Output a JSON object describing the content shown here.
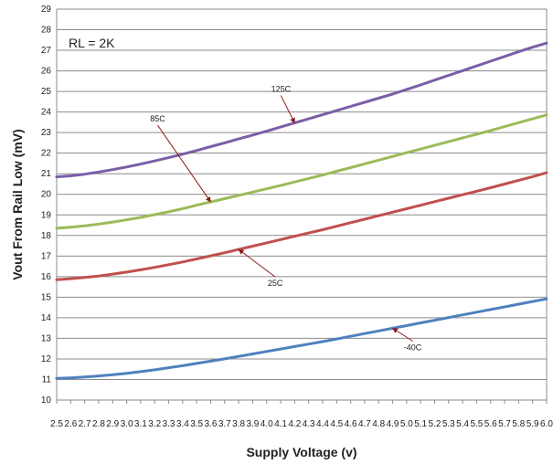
{
  "chart_data": {
    "type": "line",
    "title": "",
    "xlabel": "Supply Voltage (v)",
    "ylabel": "Vout From Rail Low (mV)",
    "note": "RL = 2K",
    "xlim": [
      2.5,
      6.0
    ],
    "ylim": [
      10,
      29
    ],
    "grid": true,
    "x": [
      2.5,
      2.6,
      2.7,
      2.8,
      2.9,
      3.0,
      3.1,
      3.2,
      3.3,
      3.4,
      3.5,
      3.6,
      3.7,
      3.8,
      3.9,
      4.0,
      4.1,
      4.2,
      4.3,
      4.4,
      4.5,
      4.6,
      4.7,
      4.8,
      4.9,
      5.0,
      5.1,
      5.2,
      5.3,
      5.4,
      5.5,
      5.6,
      5.7,
      5.8,
      5.9,
      6.0
    ],
    "x_tick_labels": [
      "2.5",
      "2.6",
      "2.7",
      "2.8",
      "2.9",
      "3.0",
      "3.1",
      "3.2",
      "3.3",
      "3.4",
      "3.5",
      "3.6",
      "3.7",
      "3.8",
      "3.9",
      "4.0",
      "4.1",
      "4.2",
      "4.3",
      "4.4",
      "4.5",
      "4.6",
      "4.7",
      "4.8",
      "4.9",
      "5.0",
      "5.1",
      "5.2",
      "5.3",
      "5.4",
      "5.5",
      "5.6",
      "5.7",
      "5.8",
      "5.9",
      "6.0"
    ],
    "y_tick_labels": [
      "10",
      "11",
      "12",
      "13",
      "14",
      "15",
      "16",
      "17",
      "18",
      "19",
      "20",
      "21",
      "22",
      "23",
      "24",
      "25",
      "26",
      "27",
      "28",
      "29"
    ],
    "series": [
      {
        "name": "125C",
        "color": "#7b5ea7",
        "values": [
          20.85,
          20.9,
          20.98,
          21.08,
          21.2,
          21.33,
          21.47,
          21.62,
          21.78,
          21.95,
          22.13,
          22.32,
          22.5,
          22.69,
          22.88,
          23.07,
          23.27,
          23.47,
          23.67,
          23.87,
          24.07,
          24.27,
          24.47,
          24.67,
          24.87,
          25.1,
          25.32,
          25.55,
          25.78,
          26.01,
          26.24,
          26.47,
          26.7,
          26.93,
          27.15,
          27.35
        ]
      },
      {
        "name": "85C",
        "color": "#9bbb59",
        "values": [
          18.35,
          18.4,
          18.47,
          18.55,
          18.65,
          18.76,
          18.88,
          19.01,
          19.15,
          19.3,
          19.47,
          19.63,
          19.79,
          19.95,
          20.11,
          20.27,
          20.43,
          20.6,
          20.77,
          20.94,
          21.12,
          21.3,
          21.48,
          21.66,
          21.84,
          22.02,
          22.2,
          22.38,
          22.56,
          22.74,
          22.92,
          23.1,
          23.29,
          23.48,
          23.67,
          23.86
        ]
      },
      {
        "name": "25C",
        "color": "#c0504d",
        "values": [
          15.85,
          15.9,
          15.96,
          16.03,
          16.12,
          16.22,
          16.33,
          16.45,
          16.58,
          16.71,
          16.86,
          17.01,
          17.16,
          17.32,
          17.48,
          17.64,
          17.8,
          17.96,
          18.12,
          18.28,
          18.45,
          18.62,
          18.79,
          18.96,
          19.13,
          19.3,
          19.47,
          19.64,
          19.81,
          19.98,
          20.15,
          20.32,
          20.5,
          20.68,
          20.86,
          21.05
        ]
      },
      {
        "name": "-40C",
        "color": "#4f81bd",
        "values": [
          11.05,
          11.08,
          11.12,
          11.17,
          11.23,
          11.3,
          11.38,
          11.47,
          11.57,
          11.67,
          11.78,
          11.89,
          12.0,
          12.12,
          12.24,
          12.36,
          12.48,
          12.6,
          12.72,
          12.84,
          12.97,
          13.1,
          13.23,
          13.36,
          13.49,
          13.62,
          13.75,
          13.88,
          14.01,
          14.14,
          14.27,
          14.4,
          14.53,
          14.66,
          14.79,
          14.92
        ]
      }
    ],
    "annotations": [
      {
        "text": "125C",
        "series": "125C",
        "at_x": 4.2
      },
      {
        "text": "85C",
        "series": "85C",
        "at_x": 3.6
      },
      {
        "text": "25C",
        "series": "25C",
        "at_x": 3.8
      },
      {
        "text": "-40C",
        "series": "-40C",
        "at_x": 4.9
      }
    ]
  }
}
